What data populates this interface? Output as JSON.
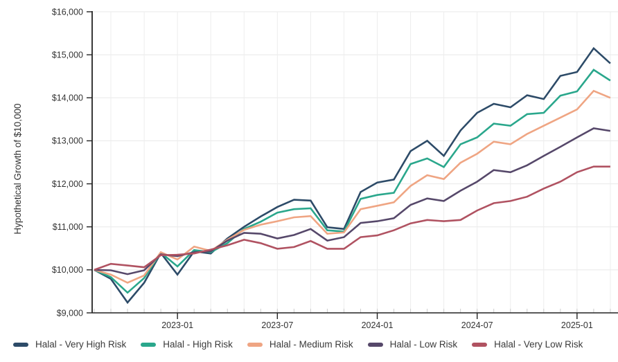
{
  "chart_data": {
    "type": "line",
    "title": "",
    "xlabel": "",
    "ylabel": "Hypothetical Growth of $10,000",
    "ylim": [
      9000,
      16000
    ],
    "ytick_values": [
      9000,
      10000,
      11000,
      12000,
      13000,
      14000,
      15000,
      16000
    ],
    "ytick_labels": [
      "$9,000",
      "$10,000",
      "$11,000",
      "$12,000",
      "$13,000",
      "$14,000",
      "$15,000",
      "$16,000"
    ],
    "xtick_labeled_indices": [
      5,
      11,
      17,
      23,
      29
    ],
    "xtick_labels": [
      "2023-01",
      "2023-07",
      "2024-01",
      "2024-07",
      "2025-01"
    ],
    "grid": "on",
    "legend_position": "bottom",
    "categories": [
      "2022-08",
      "2022-09",
      "2022-10",
      "2022-11",
      "2022-12",
      "2023-01",
      "2023-02",
      "2023-03",
      "2023-04",
      "2023-05",
      "2023-06",
      "2023-07",
      "2023-08",
      "2023-09",
      "2023-10",
      "2023-11",
      "2023-12",
      "2024-01",
      "2024-02",
      "2024-03",
      "2024-04",
      "2024-05",
      "2024-06",
      "2024-07",
      "2024-08",
      "2024-09",
      "2024-10",
      "2024-11",
      "2024-12",
      "2025-01",
      "2025-02",
      "2025-03"
    ],
    "series": [
      {
        "name": "Halal - Very High Risk",
        "color": "#2d4b68",
        "values": [
          10000,
          9790,
          9240,
          9700,
          10390,
          9890,
          10430,
          10380,
          10730,
          11000,
          11240,
          11460,
          11630,
          11610,
          10990,
          10950,
          11810,
          12030,
          12100,
          12760,
          13000,
          12650,
          13240,
          13650,
          13860,
          13780,
          14060,
          13970,
          14510,
          14600,
          15150,
          14800
        ]
      },
      {
        "name": "Halal - High Risk",
        "color": "#2aa78c",
        "values": [
          10000,
          9830,
          9470,
          9810,
          10400,
          10080,
          10460,
          10410,
          10620,
          10950,
          11120,
          11330,
          11410,
          11430,
          10920,
          10890,
          11650,
          11740,
          11790,
          12460,
          12590,
          12390,
          12920,
          13080,
          13400,
          13350,
          13620,
          13650,
          14050,
          14150,
          14650,
          14400
        ]
      },
      {
        "name": "Halal - Medium Risk",
        "color": "#efa583",
        "values": [
          10000,
          9890,
          9700,
          9870,
          10410,
          10240,
          10540,
          10440,
          10700,
          10930,
          11050,
          11130,
          11220,
          11250,
          10840,
          10870,
          11410,
          11490,
          11570,
          11950,
          12200,
          12110,
          12490,
          12700,
          12980,
          12920,
          13160,
          13350,
          13540,
          13730,
          14160,
          14000
        ]
      },
      {
        "name": "Halal - Low Risk",
        "color": "#56486a",
        "values": [
          10000,
          9990,
          9900,
          9990,
          10360,
          10320,
          10410,
          10430,
          10680,
          10860,
          10840,
          10730,
          10810,
          10950,
          10680,
          10760,
          11090,
          11130,
          11200,
          11510,
          11660,
          11600,
          11840,
          12050,
          12320,
          12270,
          12430,
          12650,
          12860,
          13080,
          13290,
          13230
        ]
      },
      {
        "name": "Halal - Very Low Risk",
        "color": "#b05261",
        "values": [
          10000,
          10140,
          10100,
          10060,
          10340,
          10350,
          10380,
          10470,
          10570,
          10700,
          10620,
          10490,
          10530,
          10670,
          10490,
          10490,
          10760,
          10800,
          10920,
          11080,
          11160,
          11130,
          11160,
          11380,
          11550,
          11600,
          11700,
          11890,
          12050,
          12270,
          12400,
          12400
        ]
      }
    ],
    "colors": {
      "axis": "#222222",
      "grid": "#e8e8e8",
      "minor_tick": "#cccccc",
      "text": "#333333"
    }
  }
}
